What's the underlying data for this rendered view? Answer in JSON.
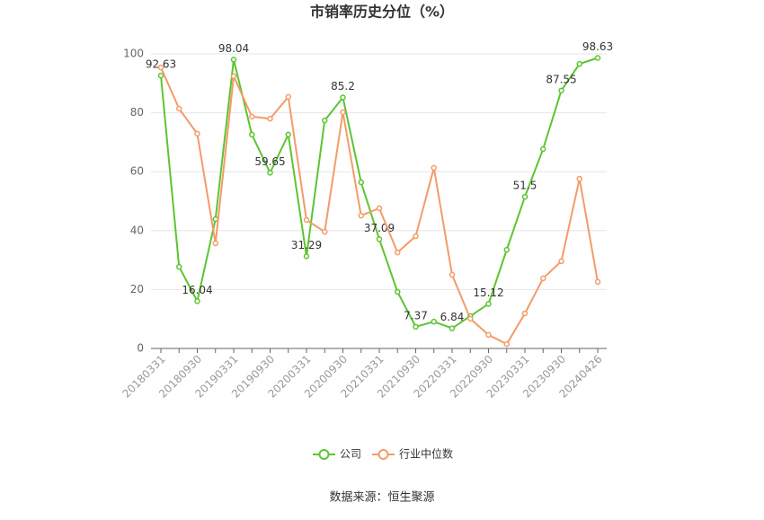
{
  "chart_data": {
    "type": "line",
    "title": "市销率历史分位（%）",
    "source": "数据来源：恒生聚源",
    "categories": [
      "20180331",
      null,
      "20180930",
      null,
      "20190331",
      null,
      "20190930",
      null,
      "20200331",
      null,
      "20200930",
      null,
      "20210331",
      null,
      "20210930",
      null,
      "20220331",
      null,
      "20220930",
      null,
      "20230331",
      null,
      "20230930",
      null,
      "20240426"
    ],
    "series": [
      {
        "name": "公司",
        "color": "#5cc531",
        "values": [
          92.63,
          27.7,
          16.04,
          43.9,
          98.04,
          72.6,
          59.65,
          72.6,
          31.29,
          77.4,
          85.2,
          56.4,
          37.09,
          19.2,
          7.37,
          9.1,
          6.84,
          11,
          15.12,
          33.5,
          51.5,
          67.7,
          87.55,
          96.6,
          98.63
        ]
      },
      {
        "name": "行业中位数",
        "color": "#f39b6a",
        "values": [
          95.4,
          81.4,
          72.9,
          35.7,
          92.4,
          78.7,
          78,
          85.4,
          43.6,
          39.6,
          80.2,
          45.1,
          47.6,
          32.6,
          38.1,
          61.3,
          25,
          10.1,
          4.6,
          1.5,
          11.9,
          23.8,
          29.6,
          57.6,
          22.6
        ]
      }
    ],
    "ylim": [
      0,
      100
    ],
    "yticks": [
      0,
      20,
      40,
      60,
      80,
      100
    ],
    "grid": true,
    "legend": "bottom"
  }
}
